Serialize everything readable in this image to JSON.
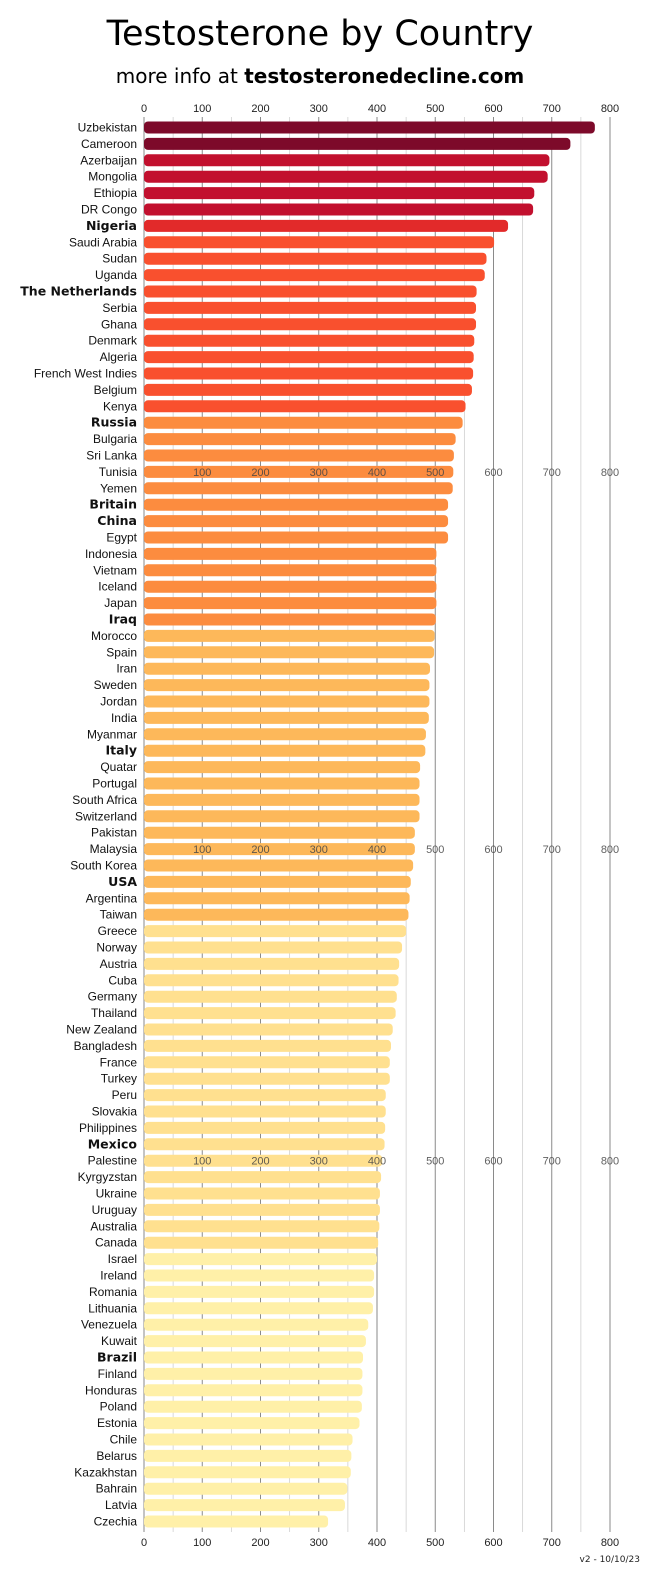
{
  "header": {
    "title": "Testosterone by Country",
    "subtitle_prefix": "more info at ",
    "subtitle_site": "testosteronedecline.com"
  },
  "footer": {
    "version": "v2 - 10/10/23"
  },
  "colors": {
    "tier1": "#7d0a2a",
    "tier2": "#c2102e",
    "tier3": "#e22a2a",
    "tier4": "#f9502e",
    "tier5": "#fc8c3f",
    "tier6": "#fdb85a",
    "tier7": "#ffe08f",
    "tier8": "#fff0a8",
    "gridline": "#aaaaaa"
  },
  "chart_data": {
    "type": "bar",
    "orientation": "horizontal",
    "title": "Testosterone by Country",
    "xlim": [
      0,
      800
    ],
    "x_ticks": [
      0,
      100,
      200,
      300,
      400,
      500,
      600,
      700,
      800
    ],
    "grid": true,
    "categories": [
      "Uzbekistan",
      "Cameroon",
      "Azerbaijan",
      "Mongolia",
      "Ethiopia",
      "DR Congo",
      "Nigeria",
      "Saudi Arabia",
      "Sudan",
      "Uganda",
      "The Netherlands",
      "Serbia",
      "Ghana",
      "Denmark",
      "Algeria",
      "French West Indies",
      "Belgium",
      "Kenya",
      "Russia",
      "Bulgaria",
      "Sri Lanka",
      "Tunisia",
      "Yemen",
      "Britain",
      "China",
      "Egypt",
      "Indonesia",
      "Vietnam",
      "Iceland",
      "Japan",
      "Iraq",
      "Morocco",
      "Spain",
      "Iran",
      "Sweden",
      "Jordan",
      "India",
      "Myanmar",
      "Italy",
      "Quatar",
      "Portugal",
      "South Africa",
      "Switzerland",
      "Pakistan",
      "Malaysia",
      "South Korea",
      "USA",
      "Argentina",
      "Taiwan",
      "Greece",
      "Norway",
      "Austria",
      "Cuba",
      "Germany",
      "Thailand",
      "New Zealand",
      "Bangladesh",
      "France",
      "Turkey",
      "Peru",
      "Slovakia",
      "Philippines",
      "Mexico",
      "Palestine",
      "Kyrgyzstan",
      "Ukraine",
      "Uruguay",
      "Australia",
      "Canada",
      "Israel",
      "Ireland",
      "Romania",
      "Lithuania",
      "Venezuela",
      "Kuwait",
      "Brazil",
      "Finland",
      "Honduras",
      "Poland",
      "Estonia",
      "Chile",
      "Belarus",
      "Kazakhstan",
      "Bahrain",
      "Latvia",
      "Czechia"
    ],
    "values": [
      774,
      732,
      696,
      693,
      670,
      668,
      625,
      601,
      588,
      585,
      571,
      570,
      570,
      567,
      566,
      565,
      563,
      552,
      547,
      535,
      532,
      531,
      530,
      522,
      522,
      522,
      502,
      502,
      502,
      502,
      501,
      499,
      498,
      491,
      490,
      490,
      489,
      484,
      483,
      474,
      473,
      473,
      473,
      465,
      465,
      462,
      458,
      456,
      454,
      450,
      443,
      438,
      437,
      434,
      432,
      427,
      424,
      422,
      422,
      415,
      415,
      414,
      413,
      409,
      407,
      405,
      405,
      404,
      402,
      400,
      395,
      395,
      393,
      385,
      381,
      376,
      375,
      375,
      374,
      370,
      358,
      356,
      355,
      349,
      345,
      316
    ],
    "bold_categories": [
      "Nigeria",
      "The Netherlands",
      "Russia",
      "Britain",
      "China",
      "Iraq",
      "Italy",
      "USA",
      "Mexico",
      "Brazil"
    ],
    "color_tiers": [
      "tier1",
      "tier1",
      "tier2",
      "tier2",
      "tier2",
      "tier2",
      "tier3",
      "tier4",
      "tier4",
      "tier4",
      "tier4",
      "tier4",
      "tier4",
      "tier4",
      "tier4",
      "tier4",
      "tier4",
      "tier4",
      "tier5",
      "tier5",
      "tier5",
      "tier5",
      "tier5",
      "tier5",
      "tier5",
      "tier5",
      "tier5",
      "tier5",
      "tier5",
      "tier5",
      "tier5",
      "tier6",
      "tier6",
      "tier6",
      "tier6",
      "tier6",
      "tier6",
      "tier6",
      "tier6",
      "tier6",
      "tier6",
      "tier6",
      "tier6",
      "tier6",
      "tier6",
      "tier6",
      "tier6",
      "tier6",
      "tier6",
      "tier7",
      "tier7",
      "tier7",
      "tier7",
      "tier7",
      "tier7",
      "tier7",
      "tier7",
      "tier7",
      "tier7",
      "tier7",
      "tier7",
      "tier7",
      "tier7",
      "tier7",
      "tier7",
      "tier7",
      "tier7",
      "tier7",
      "tier7",
      "tier8",
      "tier8",
      "tier8",
      "tier8",
      "tier8",
      "tier8",
      "tier8",
      "tier8",
      "tier8",
      "tier8",
      "tier8",
      "tier8",
      "tier8",
      "tier8",
      "tier8",
      "tier8",
      "tier8"
    ],
    "repeated_tick_rows": [
      "Tunisia",
      "Malaysia",
      "Palestine"
    ]
  }
}
